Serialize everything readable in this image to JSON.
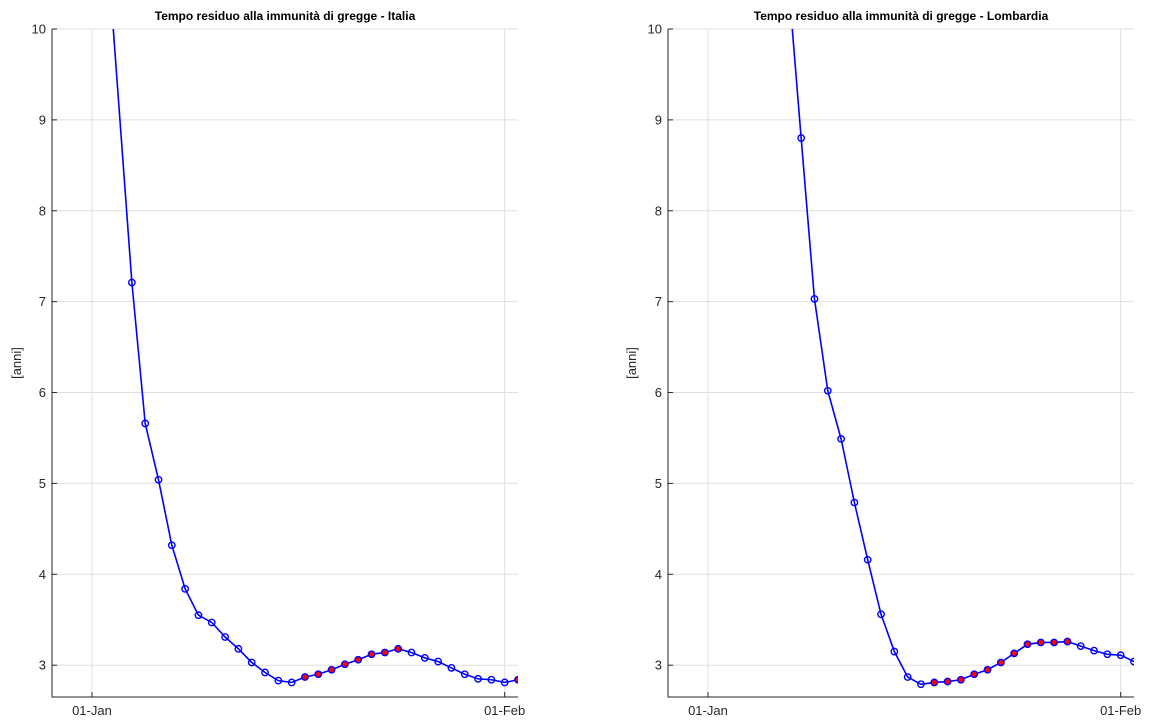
{
  "chart_data": [
    {
      "type": "line",
      "title": "Tempo residuo alla immunità di gregge - Italia",
      "ylabel": "[anni]",
      "xlabel": "",
      "ylim": [
        2.65,
        10
      ],
      "xlim": [
        "2020-12-29",
        "2021-02-02"
      ],
      "xticks": [
        {
          "date": "2021-01-01",
          "label": "01-Jan"
        },
        {
          "date": "2021-02-01",
          "label": "01-Feb"
        }
      ],
      "yticks": [
        3,
        4,
        5,
        6,
        7,
        8,
        9,
        10
      ],
      "grid": true,
      "series": [
        {
          "color": "#0000ff",
          "points": [
            {
              "x": "2021-01-02",
              "y": 11.2,
              "marker": "none"
            },
            {
              "x": "2021-01-04",
              "y": 7.21,
              "marker": "open"
            },
            {
              "x": "2021-01-05",
              "y": 5.66,
              "marker": "open"
            },
            {
              "x": "2021-01-06",
              "y": 5.04,
              "marker": "open"
            },
            {
              "x": "2021-01-07",
              "y": 4.32,
              "marker": "open"
            },
            {
              "x": "2021-01-08",
              "y": 3.84,
              "marker": "open"
            },
            {
              "x": "2021-01-09",
              "y": 3.55,
              "marker": "open"
            },
            {
              "x": "2021-01-10",
              "y": 3.47,
              "marker": "open"
            },
            {
              "x": "2021-01-11",
              "y": 3.31,
              "marker": "open"
            },
            {
              "x": "2021-01-12",
              "y": 3.18,
              "marker": "open"
            },
            {
              "x": "2021-01-13",
              "y": 3.03,
              "marker": "open"
            },
            {
              "x": "2021-01-14",
              "y": 2.92,
              "marker": "open"
            },
            {
              "x": "2021-01-15",
              "y": 2.83,
              "marker": "open"
            },
            {
              "x": "2021-01-16",
              "y": 2.81,
              "marker": "open"
            },
            {
              "x": "2021-01-17",
              "y": 2.87,
              "marker": "filled"
            },
            {
              "x": "2021-01-18",
              "y": 2.9,
              "marker": "filled"
            },
            {
              "x": "2021-01-19",
              "y": 2.95,
              "marker": "filled"
            },
            {
              "x": "2021-01-20",
              "y": 3.01,
              "marker": "filled"
            },
            {
              "x": "2021-01-21",
              "y": 3.06,
              "marker": "filled"
            },
            {
              "x": "2021-01-22",
              "y": 3.12,
              "marker": "filled"
            },
            {
              "x": "2021-01-23",
              "y": 3.14,
              "marker": "filled"
            },
            {
              "x": "2021-01-24",
              "y": 3.18,
              "marker": "filled"
            },
            {
              "x": "2021-01-25",
              "y": 3.14,
              "marker": "open"
            },
            {
              "x": "2021-01-26",
              "y": 3.08,
              "marker": "open"
            },
            {
              "x": "2021-01-27",
              "y": 3.04,
              "marker": "open"
            },
            {
              "x": "2021-01-28",
              "y": 2.97,
              "marker": "open"
            },
            {
              "x": "2021-01-29",
              "y": 2.9,
              "marker": "open"
            },
            {
              "x": "2021-01-30",
              "y": 2.85,
              "marker": "open"
            },
            {
              "x": "2021-01-31",
              "y": 2.84,
              "marker": "open"
            },
            {
              "x": "2021-02-01",
              "y": 2.81,
              "marker": "open"
            },
            {
              "x": "2021-02-02",
              "y": 2.84,
              "marker": "filled"
            }
          ]
        }
      ]
    },
    {
      "type": "line",
      "title": "Tempo residuo alla immunità di gregge - Lombardia",
      "ylabel": "[anni]",
      "xlabel": "",
      "ylim": [
        2.65,
        10
      ],
      "xlim": [
        "2020-12-29",
        "2021-02-02"
      ],
      "xticks": [
        {
          "date": "2021-01-01",
          "label": "01-Jan"
        },
        {
          "date": "2021-02-01",
          "label": "01-Feb"
        }
      ],
      "yticks": [
        3,
        4,
        5,
        6,
        7,
        8,
        9,
        10
      ],
      "grid": true,
      "series": [
        {
          "color": "#0000ff",
          "points": [
            {
              "x": "2021-01-07",
              "y": 10.6,
              "marker": "none"
            },
            {
              "x": "2021-01-08",
              "y": 8.8,
              "marker": "open"
            },
            {
              "x": "2021-01-09",
              "y": 7.03,
              "marker": "open"
            },
            {
              "x": "2021-01-10",
              "y": 6.02,
              "marker": "open"
            },
            {
              "x": "2021-01-11",
              "y": 5.49,
              "marker": "open"
            },
            {
              "x": "2021-01-12",
              "y": 4.79,
              "marker": "open"
            },
            {
              "x": "2021-01-13",
              "y": 4.16,
              "marker": "open"
            },
            {
              "x": "2021-01-14",
              "y": 3.56,
              "marker": "open"
            },
            {
              "x": "2021-01-15",
              "y": 3.15,
              "marker": "open"
            },
            {
              "x": "2021-01-16",
              "y": 2.87,
              "marker": "open"
            },
            {
              "x": "2021-01-17",
              "y": 2.79,
              "marker": "open"
            },
            {
              "x": "2021-01-18",
              "y": 2.81,
              "marker": "filled"
            },
            {
              "x": "2021-01-19",
              "y": 2.82,
              "marker": "filled"
            },
            {
              "x": "2021-01-20",
              "y": 2.84,
              "marker": "filled"
            },
            {
              "x": "2021-01-21",
              "y": 2.9,
              "marker": "filled"
            },
            {
              "x": "2021-01-22",
              "y": 2.95,
              "marker": "filled"
            },
            {
              "x": "2021-01-23",
              "y": 3.03,
              "marker": "filled"
            },
            {
              "x": "2021-01-24",
              "y": 3.13,
              "marker": "filled"
            },
            {
              "x": "2021-01-25",
              "y": 3.23,
              "marker": "filled"
            },
            {
              "x": "2021-01-26",
              "y": 3.25,
              "marker": "filled"
            },
            {
              "x": "2021-01-27",
              "y": 3.25,
              "marker": "filled"
            },
            {
              "x": "2021-01-28",
              "y": 3.26,
              "marker": "filled"
            },
            {
              "x": "2021-01-29",
              "y": 3.21,
              "marker": "open"
            },
            {
              "x": "2021-01-30",
              "y": 3.16,
              "marker": "open"
            },
            {
              "x": "2021-01-31",
              "y": 3.12,
              "marker": "open"
            },
            {
              "x": "2021-02-01",
              "y": 3.11,
              "marker": "open"
            },
            {
              "x": "2021-02-02",
              "y": 3.04,
              "marker": "open"
            },
            {
              "x": "2021-02-03",
              "y": 3.06,
              "marker": "filled"
            }
          ]
        }
      ]
    }
  ]
}
